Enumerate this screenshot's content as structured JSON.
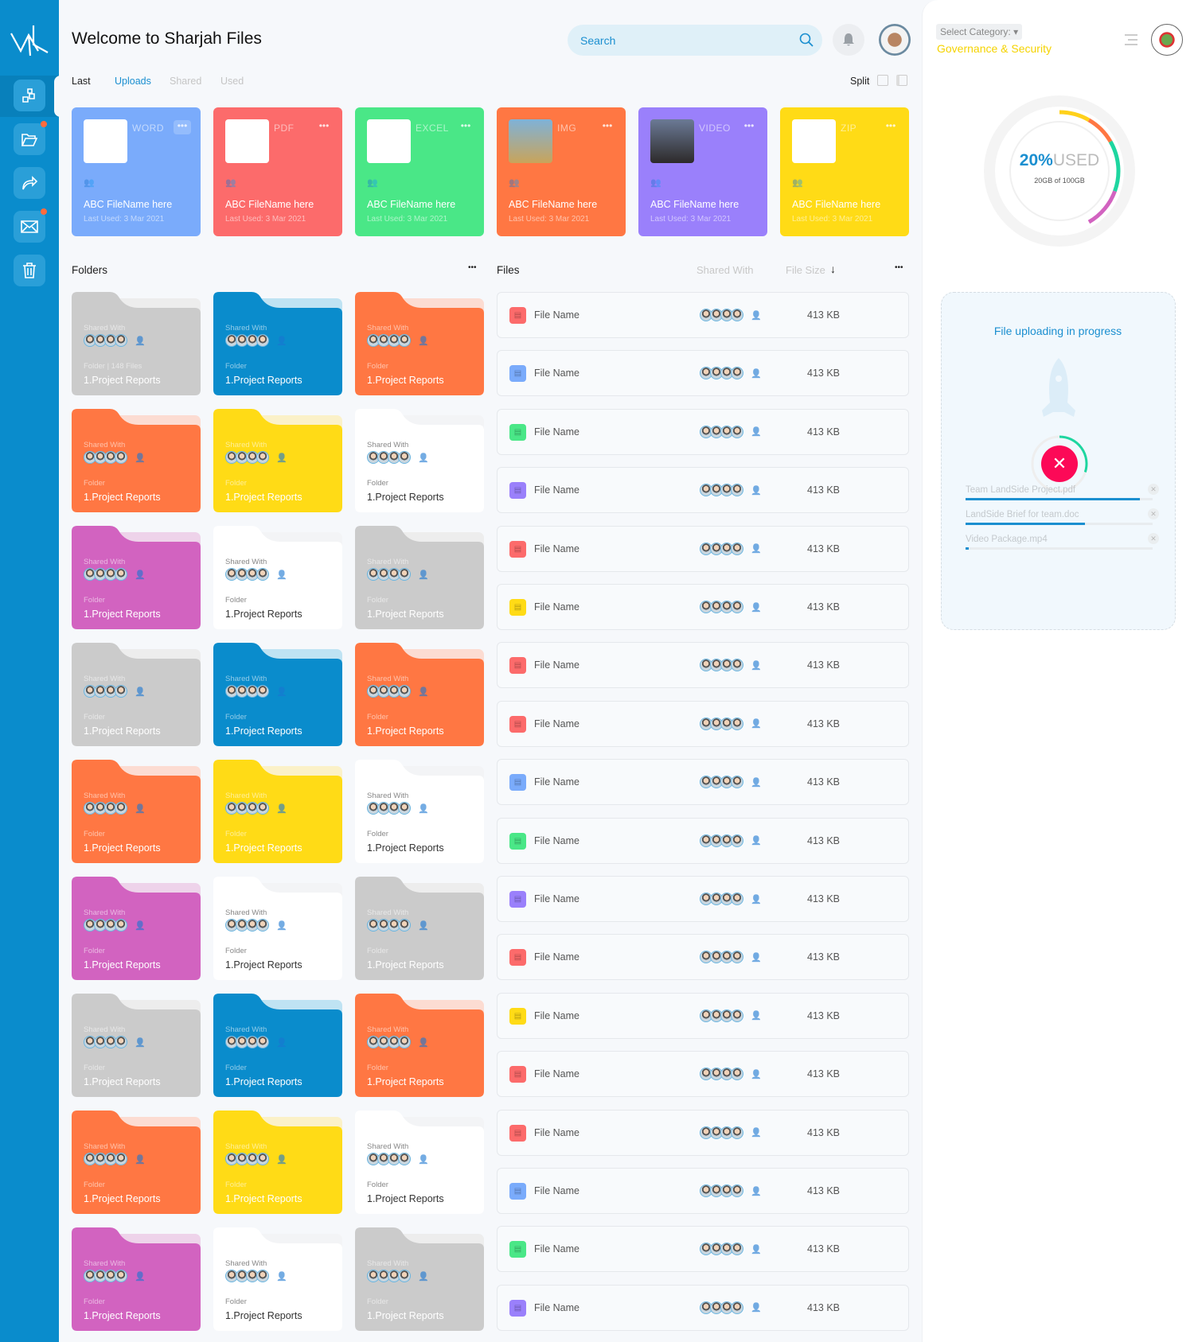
{
  "header": {
    "title": "Welcome to Sharjah Files",
    "search_placeholder": "Search"
  },
  "tabs": [
    {
      "label": "Last",
      "state": "current"
    },
    {
      "label": "Uploads",
      "state": "active"
    },
    {
      "label": "Shared",
      "state": "inactive"
    },
    {
      "label": "Used",
      "state": "inactive"
    }
  ],
  "view": {
    "split_label": "Split"
  },
  "sidebar": {
    "items": [
      {
        "icon": "dashboard-icon",
        "active": true,
        "badge": false
      },
      {
        "icon": "folder-open-icon",
        "badge": true
      },
      {
        "icon": "share-icon",
        "badge": false
      },
      {
        "icon": "mail-icon",
        "badge": true
      },
      {
        "icon": "trash-icon",
        "badge": false
      }
    ]
  },
  "recent": [
    {
      "type": "WORD",
      "name": "ABC FileName here",
      "last_used": "Last Used: 3 Mar 2021",
      "color": "#7aabfb"
    },
    {
      "type": "PDF",
      "name": "ABC FileName here",
      "last_used": "Last Used: 3 Mar 2021",
      "color": "#fc6b6b"
    },
    {
      "type": "EXCEL",
      "name": "ABC FileName here",
      "last_used": "Last Used: 3 Mar 2021",
      "color": "#4ae787"
    },
    {
      "type": "IMG",
      "name": "ABC FileName here",
      "last_used": "Last Used: 3 Mar 2021",
      "color": "#ff7743"
    },
    {
      "type": "VIDEO",
      "name": "ABC FileName here",
      "last_used": "Last Used: 3 Mar 2021",
      "color": "#9a80fb"
    },
    {
      "type": "ZIP",
      "name": "ABC FileName here",
      "last_used": "Last Used: 3 Mar 2021",
      "color": "#ffdb16"
    }
  ],
  "folders_section": {
    "title": "Folders",
    "more": "•••"
  },
  "folder_colors": {
    "gray": "#cbcbcb",
    "blue": "#0a8ccc",
    "orange": "#ff7743",
    "yellow": "#ffdb16",
    "white": "#ffffff",
    "magenta": "#d263c0"
  },
  "folders": [
    {
      "color": "gray",
      "shared_label": "Shared With",
      "meta": "Folder | 148 Files",
      "name": "1.Project Reports"
    },
    {
      "color": "blue",
      "shared_label": "Shared With",
      "meta": "Folder",
      "name": "1.Project Reports"
    },
    {
      "color": "orange",
      "shared_label": "Shared With",
      "meta": "Folder",
      "name": "1.Project Reports"
    },
    {
      "color": "orange",
      "shared_label": "Shared With",
      "meta": "Folder",
      "name": "1.Project Reports"
    },
    {
      "color": "yellow",
      "shared_label": "Shared With",
      "meta": "Folder",
      "name": "1.Project Reports"
    },
    {
      "color": "white",
      "shared_label": "Shared With",
      "meta": "Folder",
      "name": "1.Project Reports"
    },
    {
      "color": "magenta",
      "shared_label": "Shared With",
      "meta": "Folder",
      "name": "1.Project Reports"
    },
    {
      "color": "white",
      "shared_label": "Shared With",
      "meta": "Folder",
      "name": "1.Project Reports"
    },
    {
      "color": "gray",
      "shared_label": "Shared With",
      "meta": "Folder",
      "name": "1.Project Reports"
    },
    {
      "color": "gray",
      "shared_label": "Shared With",
      "meta": "Folder",
      "name": "1.Project Reports"
    },
    {
      "color": "blue",
      "shared_label": "Shared With",
      "meta": "Folder",
      "name": "1.Project Reports"
    },
    {
      "color": "orange",
      "shared_label": "Shared With",
      "meta": "Folder",
      "name": "1.Project Reports"
    },
    {
      "color": "orange",
      "shared_label": "Shared With",
      "meta": "Folder",
      "name": "1.Project Reports"
    },
    {
      "color": "yellow",
      "shared_label": "Shared With",
      "meta": "Folder",
      "name": "1.Project Reports"
    },
    {
      "color": "white",
      "shared_label": "Shared With",
      "meta": "Folder",
      "name": "1.Project Reports"
    },
    {
      "color": "magenta",
      "shared_label": "Shared With",
      "meta": "Folder",
      "name": "1.Project Reports"
    },
    {
      "color": "white",
      "shared_label": "Shared With",
      "meta": "Folder",
      "name": "1.Project Reports"
    },
    {
      "color": "gray",
      "shared_label": "Shared With",
      "meta": "Folder",
      "name": "1.Project Reports"
    },
    {
      "color": "gray",
      "shared_label": "Shared With",
      "meta": "Folder",
      "name": "1.Project Reports"
    },
    {
      "color": "blue",
      "shared_label": "Shared With",
      "meta": "Folder",
      "name": "1.Project Reports"
    },
    {
      "color": "orange",
      "shared_label": "Shared With",
      "meta": "Folder",
      "name": "1.Project Reports"
    },
    {
      "color": "orange",
      "shared_label": "Shared With",
      "meta": "Folder",
      "name": "1.Project Reports"
    },
    {
      "color": "yellow",
      "shared_label": "Shared With",
      "meta": "Folder",
      "name": "1.Project Reports"
    },
    {
      "color": "white",
      "shared_label": "Shared With",
      "meta": "Folder",
      "name": "1.Project Reports"
    },
    {
      "color": "magenta",
      "shared_label": "Shared With",
      "meta": "Folder",
      "name": "1.Project Reports"
    },
    {
      "color": "white",
      "shared_label": "Shared With",
      "meta": "Folder",
      "name": "1.Project Reports"
    },
    {
      "color": "gray",
      "shared_label": "Shared With",
      "meta": "Folder",
      "name": "1.Project Reports"
    }
  ],
  "files_section": {
    "title": "Files",
    "col_shared": "Shared With",
    "col_size": "File Size",
    "sort_icon": "arrow-down-icon",
    "more": "•••"
  },
  "file_type_colors": {
    "pdf": "#fc6b6b",
    "doc": "#7aabfb",
    "xls": "#4ae787",
    "video": "#9a80fb",
    "zip": "#ffdb16"
  },
  "files": [
    {
      "type": "pdf",
      "name": "File Name",
      "size": "413 KB"
    },
    {
      "type": "doc",
      "name": "File Name",
      "size": "413 KB"
    },
    {
      "type": "xls",
      "name": "File Name",
      "size": "413 KB"
    },
    {
      "type": "video",
      "name": "File Name",
      "size": "413 KB"
    },
    {
      "type": "pdf",
      "name": "File Name",
      "size": "413 KB"
    },
    {
      "type": "zip",
      "name": "File Name",
      "size": "413 KB"
    },
    {
      "type": "pdf",
      "name": "File Name",
      "size": "413 KB"
    },
    {
      "type": "pdf",
      "name": "File Name",
      "size": "413 KB"
    },
    {
      "type": "doc",
      "name": "File Name",
      "size": "413 KB"
    },
    {
      "type": "xls",
      "name": "File Name",
      "size": "413 KB"
    },
    {
      "type": "video",
      "name": "File Name",
      "size": "413 KB"
    },
    {
      "type": "pdf",
      "name": "File Name",
      "size": "413 KB"
    },
    {
      "type": "zip",
      "name": "File Name",
      "size": "413 KB"
    },
    {
      "type": "pdf",
      "name": "File Name",
      "size": "413 KB"
    },
    {
      "type": "pdf",
      "name": "File Name",
      "size": "413 KB"
    },
    {
      "type": "doc",
      "name": "File Name",
      "size": "413 KB"
    },
    {
      "type": "xls",
      "name": "File Name",
      "size": "413 KB"
    },
    {
      "type": "video",
      "name": "File Name",
      "size": "413 KB"
    }
  ],
  "right": {
    "category_label": "Select Category:",
    "category_value": "Governance & Security",
    "storage": {
      "percent": 20,
      "percent_text": "20%",
      "used_word": "USED",
      "detail": "20GB of 100GB",
      "segment_colors": [
        "#ffd11a",
        "#ff7743",
        "#1ed6a0",
        "#d263c0"
      ]
    },
    "upload": {
      "title": "File uploading in progress",
      "overall_progress": 0.3,
      "items": [
        {
          "name": "Team LandSide Project.pdf",
          "progress": 0.93
        },
        {
          "name": "LandSide Brief for team.doc",
          "progress": 0.64
        },
        {
          "name": "Video Package.mp4",
          "progress": 0.01
        }
      ]
    }
  }
}
